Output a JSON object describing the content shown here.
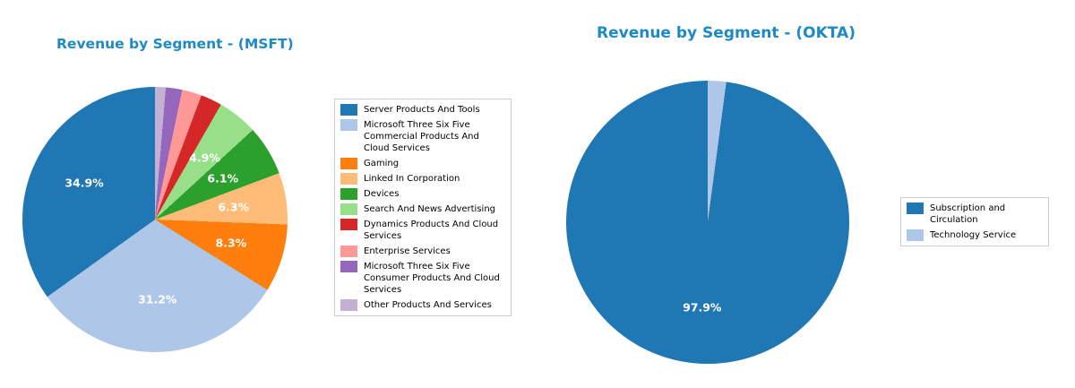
{
  "chart_data": [
    {
      "type": "pie",
      "title": "Revenue by Segment - (MSFT)",
      "title_color": "#1d8ac4",
      "start_angle": 90,
      "direction": "counterclockwise",
      "legend_position": "right",
      "pct_distance": 0.6,
      "slices": [
        {
          "label": "Server Products And Tools",
          "value": 34.9,
          "pct_label": "34.9%",
          "color": "#1f77b4"
        },
        {
          "label": "Microsoft Three Six Five Commercial Products And Cloud Services",
          "value": 31.2,
          "pct_label": "31.2%",
          "color": "#aec7e8"
        },
        {
          "label": "Gaming",
          "value": 8.3,
          "pct_label": "8.3%",
          "color": "#ff7f0e"
        },
        {
          "label": "Linked In Corporation",
          "value": 6.3,
          "pct_label": "6.3%",
          "color": "#ffbb78"
        },
        {
          "label": "Devices",
          "value": 6.1,
          "pct_label": "6.1%",
          "color": "#2ca02c"
        },
        {
          "label": "Search And News Advertising",
          "value": 4.9,
          "pct_label": "4.9%",
          "color": "#98df8a"
        },
        {
          "label": "Dynamics Products And Cloud Services",
          "value": 2.6,
          "pct_label": "",
          "color": "#d62728"
        },
        {
          "label": "Enterprise Services",
          "value": 2.4,
          "pct_label": "",
          "color": "#ff9896"
        },
        {
          "label": "Microsoft Three Six Five Consumer Products And Cloud Services",
          "value": 2.0,
          "pct_label": "",
          "color": "#9467bd"
        },
        {
          "label": "Other Products And Services",
          "value": 1.3,
          "pct_label": "",
          "color": "#c5b0d5"
        }
      ]
    },
    {
      "type": "pie",
      "title": "Revenue by Segment - (OKTA)",
      "title_color": "#1d8ac4",
      "start_angle": 90,
      "direction": "counterclockwise",
      "legend_position": "right",
      "pct_distance": 0.6,
      "slices": [
        {
          "label": "Subscription and Circulation",
          "value": 97.9,
          "pct_label": "97.9%",
          "color": "#1f77b4"
        },
        {
          "label": "Technology Service",
          "value": 2.1,
          "pct_label": "",
          "color": "#aec7e8"
        }
      ]
    }
  ]
}
